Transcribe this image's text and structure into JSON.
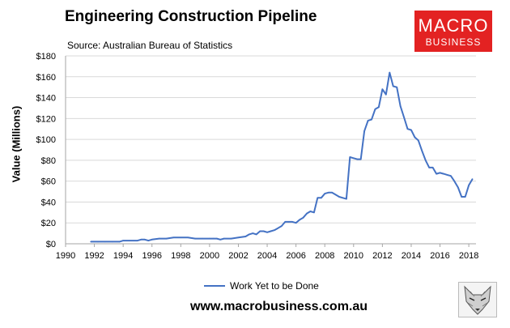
{
  "header": {
    "title": "Engineering Construction Pipeline",
    "source": "Source: Australian Bureau of Statistics"
  },
  "logo": {
    "line1": "MACRO",
    "line2": "BUSINESS",
    "color": "#e32222"
  },
  "footer": {
    "website": "www.macrobusiness.com.au"
  },
  "chart_data": {
    "type": "line",
    "ylabel": "Value (Millions)",
    "xlim": [
      1990,
      2018.5
    ],
    "ylim": [
      0,
      180
    ],
    "yticks": [
      0,
      20,
      40,
      60,
      80,
      100,
      120,
      140,
      160,
      180
    ],
    "ytick_labels": [
      "$0",
      "$20",
      "$40",
      "$60",
      "$80",
      "$100",
      "$120",
      "$140",
      "$160",
      "$180"
    ],
    "xticks": [
      1990,
      1992,
      1994,
      1996,
      1998,
      2000,
      2002,
      2004,
      2006,
      2008,
      2010,
      2012,
      2014,
      2016,
      2018
    ],
    "grid": "horizontal",
    "legend_position": "bottom",
    "series": [
      {
        "name": "Work Yet to be Done",
        "color": "#4472c4",
        "x": [
          1991.75,
          1992.25,
          1992.75,
          1993.25,
          1993.75,
          1994.0,
          1994.5,
          1995.0,
          1995.25,
          1995.5,
          1995.75,
          1996.0,
          1996.5,
          1997.0,
          1997.5,
          1998.0,
          1998.5,
          1999.0,
          1999.5,
          2000.0,
          2000.25,
          2000.5,
          2000.75,
          2001.0,
          2001.5,
          2002.0,
          2002.5,
          2002.75,
          2003.0,
          2003.25,
          2003.5,
          2003.75,
          2004.0,
          2004.25,
          2004.5,
          2004.75,
          2005.0,
          2005.25,
          2005.5,
          2005.75,
          2006.0,
          2006.25,
          2006.5,
          2006.75,
          2007.0,
          2007.25,
          2007.5,
          2007.75,
          2008.0,
          2008.25,
          2008.5,
          2008.75,
          2009.0,
          2009.25,
          2009.5,
          2009.75,
          2010.0,
          2010.25,
          2010.5,
          2010.75,
          2011.0,
          2011.25,
          2011.5,
          2011.75,
          2012.0,
          2012.25,
          2012.5,
          2012.75,
          2013.0,
          2013.25,
          2013.5,
          2013.75,
          2014.0,
          2014.25,
          2014.5,
          2014.75,
          2015.0,
          2015.25,
          2015.5,
          2015.75,
          2016.0,
          2016.25,
          2016.5,
          2016.75,
          2017.0,
          2017.25,
          2017.5,
          2017.75,
          2018.0,
          2018.25
        ],
        "y": [
          2,
          2,
          2,
          2,
          2,
          3,
          3,
          3,
          4,
          4,
          3,
          4,
          5,
          5,
          6,
          6,
          6,
          5,
          5,
          5,
          5,
          5,
          4,
          5,
          5,
          6,
          7,
          9,
          10,
          9,
          12,
          12,
          11,
          12,
          13,
          15,
          17,
          21,
          21,
          21,
          20,
          23,
          25,
          29,
          31,
          30,
          44,
          44,
          48,
          49,
          49,
          47,
          45,
          44,
          43,
          83,
          82,
          81,
          81,
          108,
          118,
          119,
          129,
          131,
          148,
          143,
          164,
          151,
          150,
          132,
          121,
          110,
          109,
          102,
          99,
          89,
          80,
          73,
          73,
          67,
          68,
          67,
          66,
          65,
          60,
          54,
          45,
          45,
          56,
          62
        ]
      }
    ]
  }
}
